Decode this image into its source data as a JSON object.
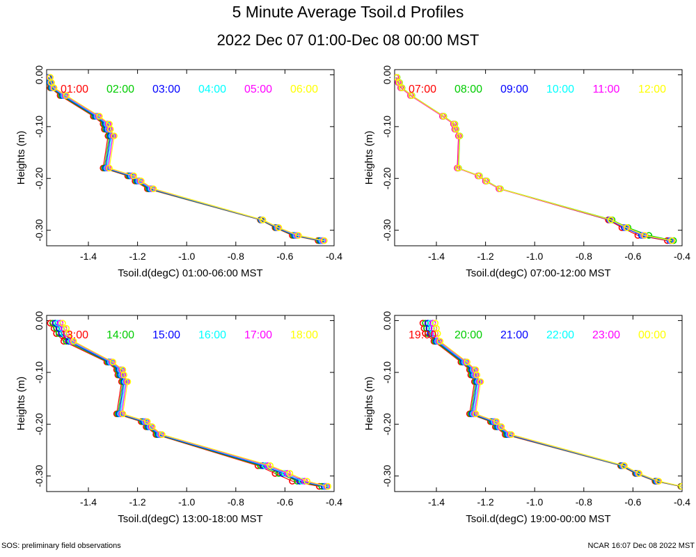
{
  "page": {
    "title": "5 Minute Average Tsoil.d Profiles",
    "subtitle": "2022 Dec 07 01:00-Dec 08 00:00 MST",
    "footer_left": "SOS: preliminary field observations",
    "footer_right": "NCAR 16:07 Dec 08 2022 MST"
  },
  "series_colors": [
    "#ff0000",
    "#00cc00",
    "#0000ff",
    "#00ffff",
    "#ff00ff",
    "#ffff00"
  ],
  "chart_data": [
    {
      "type": "line",
      "xlabel": "Tsoil.d(degC) 01:00-06:00 MST",
      "ylabel": "Heights (m)",
      "xlim": [
        -1.57,
        -0.4
      ],
      "ylim": [
        -0.33,
        0.01
      ],
      "xticks": [
        -1.4,
        -1.2,
        -1.0,
        -0.8,
        -0.6,
        -0.4
      ],
      "xtick_labels": [
        "-1.4",
        "-1.2",
        "-1.0",
        "-0.8",
        "-0.6",
        "-0.4"
      ],
      "yticks": [
        0.0,
        -0.1,
        -0.2,
        -0.3
      ],
      "ytick_labels": [
        "0.00",
        "-0.10",
        "-0.20",
        "-0.30"
      ],
      "heights": [
        -0.005,
        -0.015,
        -0.025,
        -0.04,
        -0.08,
        -0.095,
        -0.105,
        -0.118,
        -0.18,
        -0.195,
        -0.205,
        -0.22,
        -0.28,
        -0.295,
        -0.31,
        -0.32
      ],
      "series": [
        {
          "name": "01:00",
          "values": [
            -1.565,
            -1.56,
            -1.555,
            -1.515,
            -1.38,
            -1.34,
            -1.335,
            -1.32,
            -1.34,
            -1.24,
            -1.21,
            -1.16,
            -0.7,
            -0.64,
            -0.57,
            -0.465
          ]
        },
        {
          "name": "02:00",
          "values": [
            -1.563,
            -1.558,
            -1.552,
            -1.51,
            -1.375,
            -1.335,
            -1.33,
            -1.315,
            -1.335,
            -1.235,
            -1.205,
            -1.155,
            -0.698,
            -0.637,
            -0.565,
            -0.46
          ]
        },
        {
          "name": "03:00",
          "values": [
            -1.561,
            -1.556,
            -1.549,
            -1.505,
            -1.37,
            -1.33,
            -1.325,
            -1.31,
            -1.33,
            -1.23,
            -1.2,
            -1.15,
            -0.696,
            -0.634,
            -0.56,
            -0.455
          ]
        },
        {
          "name": "04:00",
          "values": [
            -1.559,
            -1.554,
            -1.546,
            -1.5,
            -1.365,
            -1.325,
            -1.32,
            -1.305,
            -1.325,
            -1.225,
            -1.195,
            -1.145,
            -0.694,
            -0.631,
            -0.555,
            -0.45
          ]
        },
        {
          "name": "05:00",
          "values": [
            -1.557,
            -1.552,
            -1.543,
            -1.495,
            -1.36,
            -1.32,
            -1.315,
            -1.3,
            -1.32,
            -1.22,
            -1.19,
            -1.14,
            -0.692,
            -0.628,
            -0.55,
            -0.445
          ]
        },
        {
          "name": "06:00",
          "values": [
            -1.555,
            -1.55,
            -1.54,
            -1.49,
            -1.355,
            -1.315,
            -1.31,
            -1.295,
            -1.315,
            -1.215,
            -1.185,
            -1.135,
            -0.69,
            -0.625,
            -0.545,
            -0.44
          ]
        }
      ]
    },
    {
      "type": "line",
      "xlabel": "Tsoil.d(degC) 07:00-12:00 MST",
      "ylabel": "Heights (m)",
      "xlim": [
        -1.57,
        -0.4
      ],
      "ylim": [
        -0.33,
        0.01
      ],
      "xticks": [
        -1.4,
        -1.2,
        -1.0,
        -0.8,
        -0.6,
        -0.4
      ],
      "xtick_labels": [
        "-1.4",
        "-1.2",
        "-1.0",
        "-0.8",
        "-0.6",
        "-0.4"
      ],
      "yticks": [
        0.0,
        -0.1,
        -0.2,
        -0.3
      ],
      "ytick_labels": [
        "0.00",
        "-0.10",
        "-0.20",
        "-0.30"
      ],
      "heights": [
        -0.005,
        -0.015,
        -0.025,
        -0.04,
        -0.08,
        -0.095,
        -0.105,
        -0.118,
        -0.18,
        -0.195,
        -0.205,
        -0.22,
        -0.28,
        -0.295,
        -0.31,
        -0.32
      ],
      "series": [
        {
          "name": "07:00",
          "values": [
            -1.565,
            -1.555,
            -1.545,
            -1.505,
            -1.375,
            -1.33,
            -1.325,
            -1.31,
            -1.315,
            -1.23,
            -1.2,
            -1.145,
            -0.7,
            -0.645,
            -0.58,
            -0.46
          ]
        },
        {
          "name": "08:00",
          "values": [
            -1.56,
            -1.55,
            -1.54,
            -1.5,
            -1.37,
            -1.325,
            -1.32,
            -1.305,
            -1.31,
            -1.225,
            -1.195,
            -1.14,
            -0.685,
            -0.62,
            -0.535,
            -0.435
          ]
        },
        {
          "name": "09:00",
          "values": [
            -1.562,
            -1.552,
            -1.542,
            -1.502,
            -1.372,
            -1.327,
            -1.322,
            -1.307,
            -1.312,
            -1.227,
            -1.197,
            -1.142,
            -0.695,
            -0.635,
            -0.565,
            -0.45
          ]
        },
        {
          "name": "10:00",
          "values": [
            -1.563,
            -1.553,
            -1.543,
            -1.503,
            -1.373,
            -1.328,
            -1.323,
            -1.308,
            -1.313,
            -1.228,
            -1.198,
            -1.143,
            -0.693,
            -0.63,
            -0.56,
            -0.447
          ]
        },
        {
          "name": "11:00",
          "values": [
            -1.564,
            -1.554,
            -1.544,
            -1.504,
            -1.374,
            -1.329,
            -1.324,
            -1.309,
            -1.314,
            -1.229,
            -1.199,
            -1.144,
            -0.691,
            -0.627,
            -0.556,
            -0.444
          ]
        },
        {
          "name": "12:00",
          "values": [
            -1.561,
            -1.551,
            -1.541,
            -1.501,
            -1.371,
            -1.326,
            -1.321,
            -1.306,
            -1.311,
            -1.226,
            -1.196,
            -1.141,
            -0.689,
            -0.624,
            -0.552,
            -0.441
          ]
        }
      ]
    },
    {
      "type": "line",
      "xlabel": "Tsoil.d(degC) 13:00-18:00 MST",
      "ylabel": "Heights (m)",
      "xlim": [
        -1.57,
        -0.4
      ],
      "ylim": [
        -0.33,
        0.01
      ],
      "xticks": [
        -1.4,
        -1.2,
        -1.0,
        -0.8,
        -0.6,
        -0.4
      ],
      "xtick_labels": [
        "-1.4",
        "-1.2",
        "-1.0",
        "-0.8",
        "-0.6",
        "-0.4"
      ],
      "yticks": [
        0.0,
        -0.1,
        -0.2,
        -0.3
      ],
      "ytick_labels": [
        "0.00",
        "-0.10",
        "-0.20",
        "-0.30"
      ],
      "heights": [
        -0.005,
        -0.015,
        -0.025,
        -0.04,
        -0.08,
        -0.095,
        -0.105,
        -0.118,
        -0.18,
        -0.195,
        -0.205,
        -0.22,
        -0.28,
        -0.295,
        -0.31,
        -0.32
      ],
      "series": [
        {
          "name": "13:00",
          "values": [
            -1.555,
            -1.54,
            -1.53,
            -1.5,
            -1.325,
            -1.285,
            -1.28,
            -1.265,
            -1.285,
            -1.185,
            -1.165,
            -1.125,
            -0.71,
            -0.64,
            -0.57,
            -0.46
          ]
        },
        {
          "name": "14:00",
          "values": [
            -1.545,
            -1.53,
            -1.52,
            -1.49,
            -1.32,
            -1.28,
            -1.275,
            -1.26,
            -1.28,
            -1.18,
            -1.16,
            -1.12,
            -0.7,
            -0.625,
            -0.55,
            -0.45
          ]
        },
        {
          "name": "15:00",
          "values": [
            -1.535,
            -1.52,
            -1.51,
            -1.48,
            -1.315,
            -1.275,
            -1.27,
            -1.255,
            -1.275,
            -1.175,
            -1.155,
            -1.115,
            -0.69,
            -0.61,
            -0.54,
            -0.44
          ]
        },
        {
          "name": "16:00",
          "values": [
            -1.525,
            -1.51,
            -1.5,
            -1.47,
            -1.31,
            -1.27,
            -1.265,
            -1.25,
            -1.27,
            -1.17,
            -1.15,
            -1.11,
            -0.68,
            -0.6,
            -0.53,
            -0.435
          ]
        },
        {
          "name": "17:00",
          "values": [
            -1.515,
            -1.5,
            -1.49,
            -1.465,
            -1.305,
            -1.265,
            -1.26,
            -1.245,
            -1.265,
            -1.165,
            -1.145,
            -1.105,
            -0.67,
            -0.59,
            -0.52,
            -0.43
          ]
        },
        {
          "name": "18:00",
          "values": [
            -1.505,
            -1.49,
            -1.48,
            -1.46,
            -1.3,
            -1.26,
            -1.255,
            -1.24,
            -1.26,
            -1.16,
            -1.14,
            -1.1,
            -0.66,
            -0.58,
            -0.51,
            -0.425
          ]
        }
      ]
    },
    {
      "type": "line",
      "xlabel": "Tsoil.d(degC) 19:00-00:00 MST",
      "ylabel": "Heights (m)",
      "xlim": [
        -1.57,
        -0.4
      ],
      "ylim": [
        -0.33,
        0.01
      ],
      "xticks": [
        -1.4,
        -1.2,
        -1.0,
        -0.8,
        -0.6,
        -0.4
      ],
      "xtick_labels": [
        "-1.4",
        "-1.2",
        "-1.0",
        "-0.8",
        "-0.6",
        "-0.4"
      ],
      "yticks": [
        0.0,
        -0.1,
        -0.2,
        -0.3
      ],
      "ytick_labels": [
        "0.00",
        "-0.10",
        "-0.20",
        "-0.30"
      ],
      "heights": [
        -0.005,
        -0.015,
        -0.025,
        -0.04,
        -0.08,
        -0.095,
        -0.105,
        -0.118,
        -0.18,
        -0.195,
        -0.205,
        -0.22,
        -0.28,
        -0.295,
        -0.31,
        -0.32
      ],
      "series": [
        {
          "name": "19:00",
          "values": [
            -1.455,
            -1.45,
            -1.445,
            -1.41,
            -1.3,
            -1.265,
            -1.26,
            -1.245,
            -1.265,
            -1.18,
            -1.16,
            -1.12,
            -0.65,
            -0.59,
            -0.51,
            -0.405
          ]
        },
        {
          "name": "20:00",
          "values": [
            -1.445,
            -1.44,
            -1.435,
            -1.405,
            -1.295,
            -1.26,
            -1.255,
            -1.24,
            -1.26,
            -1.175,
            -1.155,
            -1.115,
            -0.647,
            -0.587,
            -0.507,
            -0.403
          ]
        },
        {
          "name": "21:00",
          "values": [
            -1.435,
            -1.43,
            -1.425,
            -1.4,
            -1.29,
            -1.255,
            -1.25,
            -1.235,
            -1.255,
            -1.17,
            -1.15,
            -1.11,
            -0.644,
            -0.584,
            -0.504,
            -0.401
          ]
        },
        {
          "name": "22:00",
          "values": [
            -1.425,
            -1.42,
            -1.415,
            -1.395,
            -1.285,
            -1.25,
            -1.245,
            -1.23,
            -1.25,
            -1.165,
            -1.145,
            -1.105,
            -0.641,
            -0.581,
            -0.501,
            -0.4
          ]
        },
        {
          "name": "23:00",
          "values": [
            -1.415,
            -1.41,
            -1.405,
            -1.39,
            -1.28,
            -1.245,
            -1.24,
            -1.225,
            -1.245,
            -1.16,
            -1.14,
            -1.1,
            -0.638,
            -0.578,
            -0.498,
            -0.4
          ]
        },
        {
          "name": "00:00",
          "values": [
            -1.405,
            -1.4,
            -1.395,
            -1.385,
            -1.275,
            -1.24,
            -1.235,
            -1.22,
            -1.24,
            -1.155,
            -1.135,
            -1.095,
            -0.635,
            -0.575,
            -0.495,
            -0.4
          ]
        }
      ]
    }
  ]
}
